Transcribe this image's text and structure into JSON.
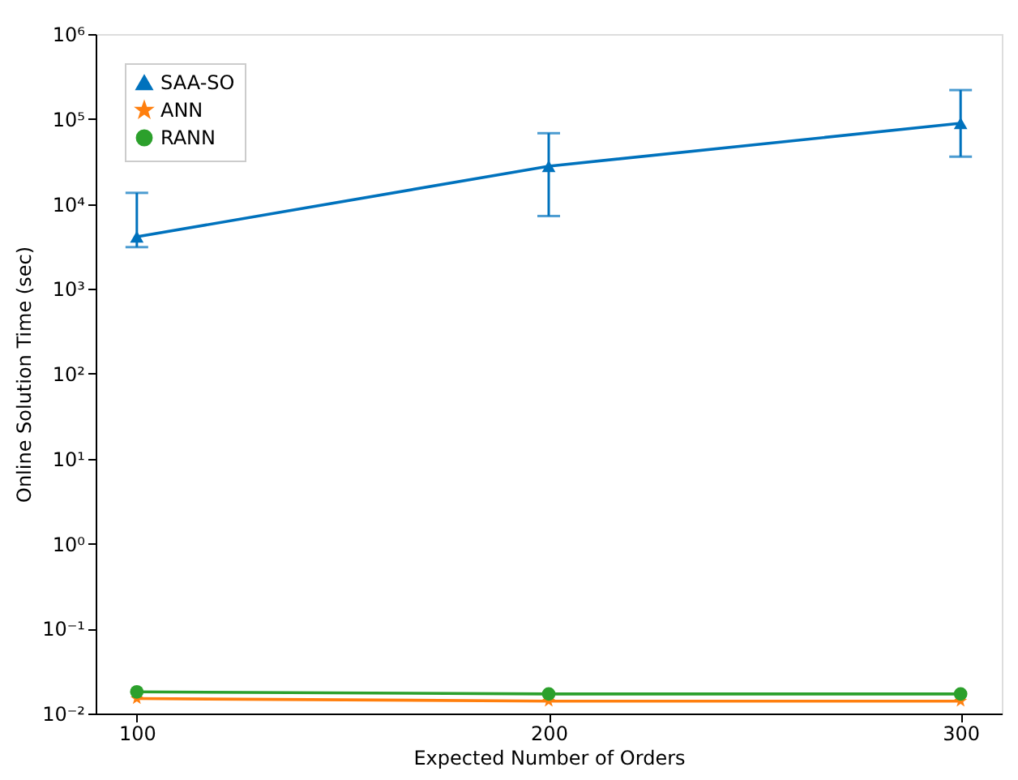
{
  "chart_data": {
    "type": "line",
    "xlabel": "Expected Number of Orders",
    "ylabel": "Online Solution Time (sec)",
    "x": [
      100,
      200,
      300
    ],
    "xlim": [
      90,
      310
    ],
    "xticks": [
      100,
      200,
      300
    ],
    "log": "y",
    "ylim": [
      0.01,
      1000000
    ],
    "yticks": [
      {
        "value": 0.01,
        "label": "10⁻²"
      },
      {
        "value": 0.1,
        "label": "10⁻¹"
      },
      {
        "value": 1,
        "label": "10⁰"
      },
      {
        "value": 10,
        "label": "10¹"
      },
      {
        "value": 100,
        "label": "10²"
      },
      {
        "value": 1000,
        "label": "10³"
      },
      {
        "value": 10000,
        "label": "10⁴"
      },
      {
        "value": 100000,
        "label": "10⁵"
      },
      {
        "value": 1000000,
        "label": "10⁶"
      }
    ],
    "grid": false,
    "legend": "top left",
    "line_style": "solid",
    "series": [
      {
        "name": "SAA-SO",
        "color": "#0072bd",
        "marker": "triangle",
        "values": [
          4100,
          27800,
          89000
        ],
        "errors": [
          [
            3100,
            13500
          ],
          [
            7200,
            68000
          ],
          [
            36000,
            219000
          ]
        ]
      },
      {
        "name": "ANN",
        "color": "#ff7f0e",
        "marker": "star",
        "values": [
          0.015,
          0.014,
          0.014
        ]
      },
      {
        "name": "RANN",
        "color": "#2ca02c",
        "marker": "circle",
        "values": [
          0.018,
          0.017,
          0.017
        ]
      }
    ]
  }
}
